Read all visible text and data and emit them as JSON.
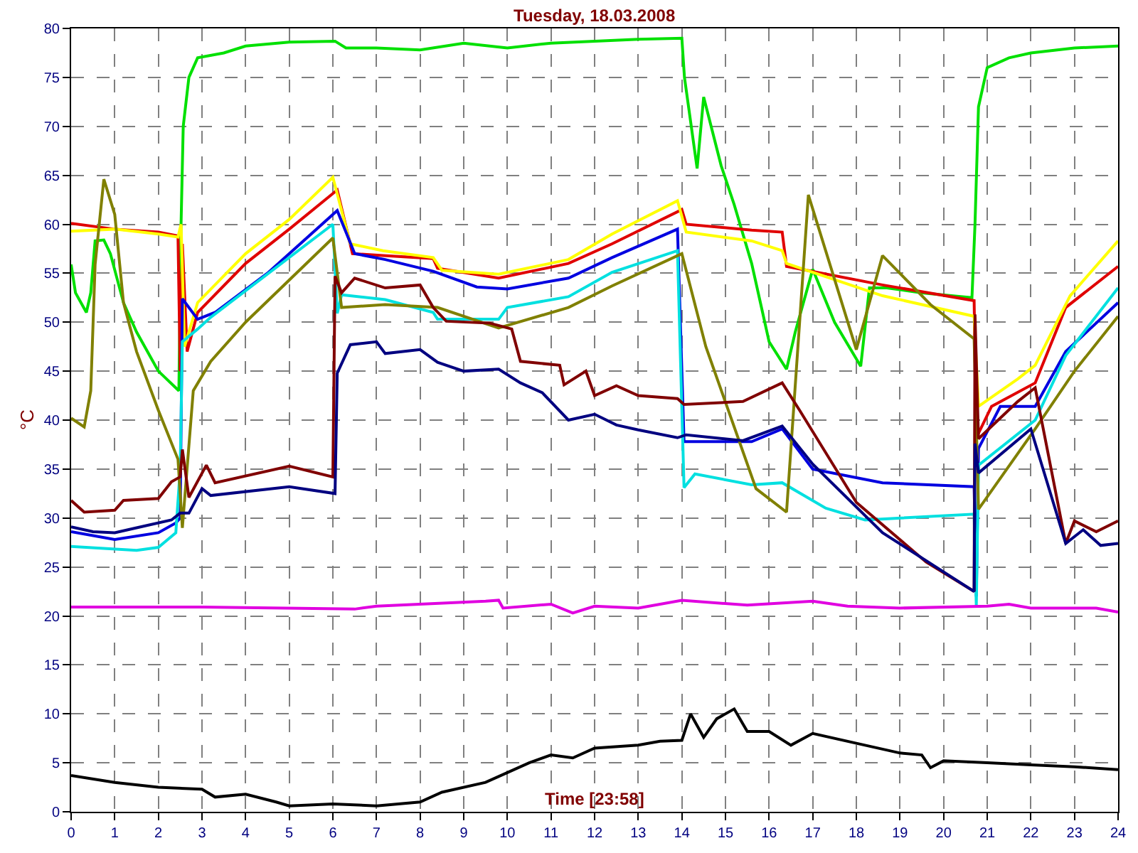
{
  "chart_data": {
    "type": "line",
    "title": "Tuesday, 18.03.2008",
    "xlabel": "Time [23:58]",
    "ylabel": "°C",
    "xlim": [
      0,
      24
    ],
    "ylim": [
      0,
      80
    ],
    "xticks": [
      0,
      1,
      2,
      3,
      4,
      5,
      6,
      7,
      8,
      9,
      10,
      11,
      12,
      13,
      14,
      15,
      16,
      17,
      18,
      19,
      20,
      21,
      22,
      23,
      24
    ],
    "yticks": [
      0,
      5,
      10,
      15,
      20,
      25,
      30,
      35,
      40,
      45,
      50,
      55,
      60,
      65,
      70,
      75,
      80
    ],
    "grid": true,
    "marker": "none",
    "line_style": "solid",
    "series": [
      {
        "color": "#00e000",
        "x": [
          0,
          0.1,
          0.35,
          0.45,
          0.55,
          0.75,
          0.9,
          1.2,
          1.5,
          2.0,
          2.47,
          2.52,
          2.57,
          2.7,
          2.9,
          3.5,
          4,
          5,
          6.05,
          6.3,
          7,
          8,
          9,
          10,
          11,
          12,
          13,
          14.0,
          14.06,
          14.35,
          14.5,
          14.9,
          15.2,
          15.6,
          16.0,
          16.4,
          16.6,
          17.0,
          17.5,
          18.1,
          18.3,
          18.7,
          19.5,
          20.65,
          20.72,
          20.8,
          21,
          21.5,
          22,
          23,
          24
        ],
        "values": [
          55.9,
          53,
          51,
          53,
          58.3,
          58.4,
          57,
          52,
          49,
          45,
          43,
          60,
          70,
          75,
          77,
          77.5,
          78.2,
          78.6,
          78.7,
          78,
          78,
          77.8,
          78.5,
          78,
          78.5,
          78.7,
          78.9,
          79,
          75,
          65.7,
          73,
          66,
          62,
          56,
          48,
          45.2,
          49,
          55.4,
          50,
          45.5,
          53.5,
          53.5,
          53,
          52.5,
          60,
          72,
          76,
          77,
          77.5,
          78,
          78.2
        ]
      },
      {
        "color": "#e00000",
        "x": [
          0,
          1,
          2,
          2.45,
          2.5,
          2.55,
          2.66,
          2.9,
          4,
          5,
          6.1,
          6.45,
          7.15,
          8.3,
          8.4,
          9.8,
          11.4,
          12.4,
          14.0,
          14.1,
          15.6,
          16.3,
          16.4,
          18.6,
          20.7,
          20.75,
          21.1,
          22.1,
          22.8,
          24
        ],
        "values": [
          60.1,
          59.5,
          59.2,
          58.8,
          45,
          58,
          47,
          51,
          56,
          59.5,
          63.5,
          57,
          56.8,
          56.5,
          55.5,
          54.5,
          56,
          58,
          61.5,
          60,
          59.4,
          59.2,
          55.7,
          53.8,
          52.2,
          38.2,
          41.4,
          43.8,
          51.5,
          55.7
        ]
      },
      {
        "color": "#ffff00",
        "x": [
          0,
          1,
          2,
          2.45,
          2.52,
          2.6,
          2.9,
          4,
          5,
          6.0,
          6.4,
          7.15,
          8.3,
          8.5,
          9.8,
          11.4,
          12.4,
          13.9,
          14.1,
          15.6,
          16.3,
          16.4,
          18.6,
          20.7,
          20.8,
          21.7,
          22.1,
          22.9,
          24
        ],
        "values": [
          59.3,
          59.5,
          59,
          58.7,
          60,
          47.5,
          52,
          57,
          60.5,
          64.8,
          58,
          57.3,
          56.6,
          55.3,
          54.9,
          56.4,
          59,
          62.4,
          59.2,
          58.3,
          57.3,
          56,
          52.7,
          50.6,
          41.4,
          44.2,
          45.6,
          52.7,
          58.3
        ]
      },
      {
        "color": "#0000e0",
        "x": [
          0,
          1,
          2,
          2.4,
          2.5,
          2.55,
          2.9,
          3.3,
          4.5,
          6.1,
          6.5,
          7.2,
          8.3,
          9.3,
          10,
          11.4,
          12.4,
          13.9,
          14.05,
          15.6,
          16.3,
          17.0,
          18.6,
          20.7,
          20.75,
          20.8,
          21.3,
          22.1,
          22.8,
          24
        ],
        "values": [
          28.6,
          27.8,
          28.5,
          29.5,
          30,
          52.4,
          50.3,
          51,
          55,
          61.4,
          57,
          56.4,
          55.2,
          53.6,
          53.4,
          54.5,
          56.6,
          59.5,
          37.8,
          37.8,
          39.1,
          35,
          33.6,
          33.2,
          22,
          37.1,
          41.4,
          41.4,
          47,
          52
        ]
      },
      {
        "color": "#00e0e0",
        "x": [
          0,
          1.5,
          2.0,
          2.4,
          2.5,
          2.55,
          2.9,
          3.2,
          6.0,
          6.1,
          6.2,
          7.2,
          8.3,
          8.4,
          9.8,
          10,
          11.4,
          12.4,
          13.9,
          14.05,
          14.3,
          15.6,
          16.3,
          17.3,
          18.2,
          20.7,
          20.75,
          20.8,
          22.1,
          22.8,
          24
        ],
        "values": [
          27.1,
          26.7,
          27,
          28.5,
          35,
          48,
          49.3,
          50.5,
          60,
          50.9,
          52.8,
          52.3,
          51,
          50.3,
          50.3,
          51.5,
          52.6,
          55.1,
          57.3,
          33.1,
          34.5,
          33.4,
          33.6,
          31,
          29.8,
          30.4,
          21,
          35.4,
          40,
          46.6,
          53.5
        ]
      },
      {
        "color": "#808000",
        "x": [
          0,
          0.3,
          0.45,
          0.55,
          0.75,
          1.0,
          1.2,
          1.5,
          2.0,
          2.45,
          2.55,
          2.8,
          3.2,
          4,
          6.0,
          6.2,
          7.2,
          8.4,
          9.8,
          11.4,
          12.4,
          14.0,
          14.55,
          15.7,
          16.4,
          16.9,
          18.0,
          18.6,
          19.7,
          20.7,
          20.8,
          22.1,
          23,
          24
        ],
        "values": [
          40.2,
          39.3,
          43,
          55.9,
          64.6,
          61,
          52,
          47,
          41,
          36,
          29,
          43,
          46,
          50,
          58.6,
          51.5,
          51.8,
          51.5,
          49.4,
          51.5,
          53.7,
          57,
          47.5,
          33,
          30.6,
          63,
          47.2,
          56.8,
          51.8,
          48.3,
          30.9,
          39.1,
          45,
          50.6
        ]
      },
      {
        "color": "#800000",
        "x": [
          0,
          0.3,
          1.0,
          1.2,
          2.0,
          2.3,
          2.5,
          2.55,
          2.7,
          3.1,
          3.3,
          5.0,
          6.0,
          6.05,
          6.2,
          6.5,
          7.2,
          8.0,
          8.3,
          8.6,
          9.6,
          10.1,
          10.3,
          11.2,
          11.3,
          11.8,
          12,
          12.5,
          13,
          13.9,
          14.05,
          15.4,
          16.3,
          16.7,
          18.0,
          19.6,
          20.7,
          20.72,
          20.8,
          21.7,
          22.1,
          22.8,
          23.0,
          23.5,
          24
        ],
        "values": [
          31.8,
          30.6,
          30.8,
          31.8,
          32,
          33.7,
          34.2,
          37,
          32.1,
          35.4,
          33.6,
          35.3,
          34.2,
          54.7,
          53,
          54.5,
          53.5,
          53.8,
          51.5,
          50.1,
          49.9,
          49.3,
          46,
          45.6,
          43.6,
          45,
          42.5,
          43.5,
          42.5,
          42.2,
          41.6,
          41.9,
          43.8,
          41,
          31.6,
          25.5,
          22.5,
          50.8,
          38.1,
          41.9,
          43.3,
          27.4,
          29.7,
          28.6,
          29.7
        ]
      },
      {
        "color": "#000080",
        "x": [
          0,
          0.5,
          1.0,
          1.5,
          2.3,
          2.5,
          2.7,
          3.0,
          3.2,
          5,
          6.05,
          6.1,
          6.4,
          7.0,
          7.2,
          8.0,
          8.4,
          9.0,
          9.8,
          10.3,
          10.8,
          11.4,
          12.0,
          12.5,
          13.0,
          13.9,
          14.1,
          15.4,
          16.3,
          17.0,
          18.6,
          20.7,
          20.72,
          20.8,
          22.0,
          22.8,
          23.2,
          23.6,
          24
        ],
        "values": [
          29.1,
          28.6,
          28.5,
          29,
          29.8,
          30.5,
          30.5,
          33,
          32.3,
          33.2,
          32.5,
          44.8,
          47.7,
          48,
          46.8,
          47.2,
          45.9,
          45,
          45.2,
          43.8,
          42.8,
          40,
          40.6,
          39.5,
          39,
          38.2,
          38.5,
          37.9,
          39.4,
          35.5,
          28.5,
          22.5,
          37.6,
          34.6,
          39.1,
          27.4,
          28.8,
          27.2,
          27.4
        ]
      },
      {
        "color": "#e000e0",
        "x": [
          0,
          3,
          6.5,
          7,
          9.5,
          9.8,
          9.9,
          11,
          11.5,
          12,
          13,
          14,
          15.5,
          17,
          17.8,
          19,
          21,
          21.5,
          22,
          23.5,
          24
        ],
        "values": [
          20.9,
          20.9,
          20.7,
          21,
          21.5,
          21.6,
          20.8,
          21.2,
          20.3,
          21,
          20.8,
          21.6,
          21.1,
          21.5,
          21,
          20.8,
          21,
          21.2,
          20.8,
          20.8,
          20.4
        ]
      },
      {
        "color": "#000000",
        "x": [
          0,
          1,
          2,
          3,
          3.3,
          4,
          4.7,
          5,
          6,
          7,
          8,
          8.5,
          9.5,
          10,
          10.5,
          11,
          11.5,
          12,
          13,
          13.5,
          14,
          14.2,
          14.5,
          14.8,
          15.2,
          15.5,
          16,
          16.5,
          17,
          18,
          19,
          19.5,
          19.7,
          20,
          21,
          22,
          23,
          24
        ],
        "values": [
          3.7,
          3,
          2.5,
          2.3,
          1.5,
          1.8,
          1,
          0.6,
          0.8,
          0.6,
          1,
          2,
          3,
          4,
          5,
          5.8,
          5.5,
          6.5,
          6.8,
          7.2,
          7.3,
          10,
          7.6,
          9.5,
          10.5,
          8.2,
          8.2,
          6.8,
          8,
          7,
          6,
          5.8,
          4.5,
          5.2,
          5,
          4.8,
          4.6,
          4.3
        ]
      }
    ]
  }
}
